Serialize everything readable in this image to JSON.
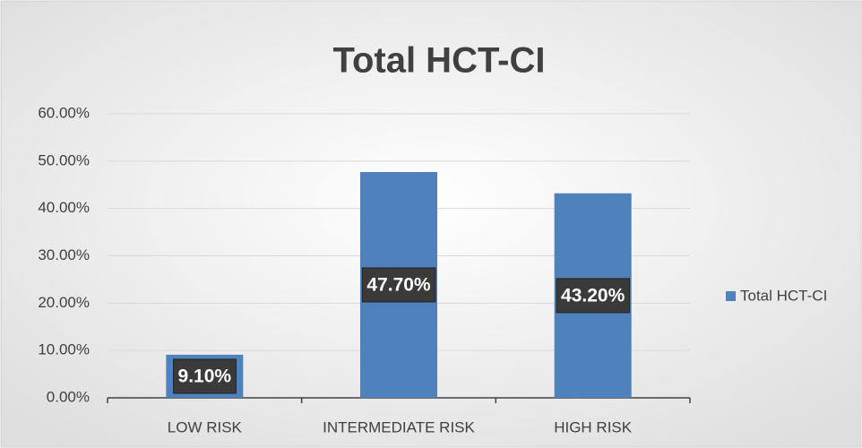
{
  "chart_data": {
    "type": "bar",
    "title": "Total HCT-CI",
    "categories": [
      "LOW RISK",
      "INTERMEDIATE RISK",
      "HIGH RISK"
    ],
    "series": [
      {
        "name": "Total HCT-CI",
        "color": "#4f81bd",
        "values": [
          9.1,
          47.7,
          43.2
        ],
        "value_labels": [
          "9.10%",
          "47.70%",
          "43.20%"
        ]
      }
    ],
    "ylim": [
      0,
      60
    ],
    "yticks": [
      {
        "value": 0,
        "label": "0.00%"
      },
      {
        "value": 10,
        "label": "10.00%"
      },
      {
        "value": 20,
        "label": "20.00%"
      },
      {
        "value": 30,
        "label": "30.00%"
      },
      {
        "value": 40,
        "label": "40.00%"
      },
      {
        "value": 50,
        "label": "50.00%"
      },
      {
        "value": 60,
        "label": "60.00%"
      }
    ],
    "grid": true,
    "legend": "right"
  }
}
